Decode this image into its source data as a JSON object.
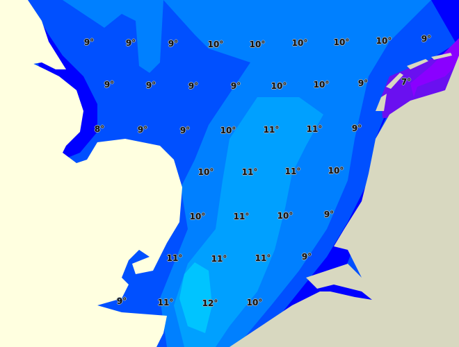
{
  "map": {
    "colors": {
      "t7": "#6a10f0",
      "t7_dark": "#8a00ff",
      "t8": "#0000ff",
      "t9": "#0050ff",
      "t10": "#0080ff",
      "t11": "#00a0ff",
      "t12": "#00c4ff",
      "land_uk": "#ffffe0",
      "land_continent": "#d8d8c0"
    },
    "labels": [
      "9°",
      "9°",
      "9°",
      "10°",
      "10°",
      "10°",
      "10°",
      "10°",
      "9°",
      "9°",
      "9°",
      "9°",
      "9°",
      "10°",
      "10°",
      "9°",
      "7°",
      "8°",
      "9°",
      "9°",
      "10°",
      "11°",
      "11°",
      "9°",
      "10°",
      "11°",
      "11°",
      "10°",
      "10°",
      "11°",
      "10°",
      "9°",
      "11°",
      "11°",
      "11°",
      "9°",
      "9°",
      "11°",
      "12°",
      "10°"
    ]
  }
}
